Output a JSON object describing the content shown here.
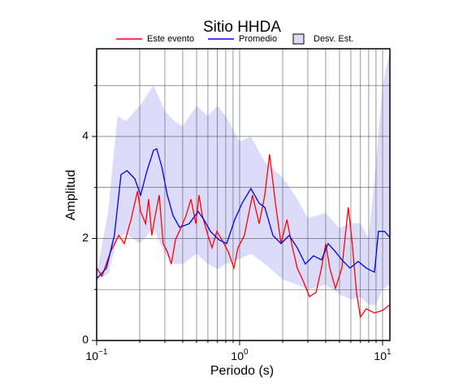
{
  "chart_data": {
    "type": "line",
    "title": "Sitio HHDA",
    "xlabel": "Periodo (s)",
    "ylabel": "Amplitud",
    "xscale": "log",
    "xlim": [
      0.1,
      11.25
    ],
    "ylim": [
      0,
      5.72
    ],
    "xticks": [
      {
        "value": 0.1,
        "label": "10",
        "exponent": "−1"
      },
      {
        "value": 1,
        "label": "10",
        "exponent": "0"
      },
      {
        "value": 10,
        "label": "10",
        "exponent": "1"
      }
    ],
    "xminor": [
      0.2,
      0.3,
      0.4,
      0.5,
      0.6,
      0.7,
      0.8,
      0.9,
      2,
      3,
      4,
      5,
      6,
      7,
      8,
      9
    ],
    "yticks": [
      0,
      2,
      4
    ],
    "yminor": [
      1,
      3,
      5
    ],
    "grid": true,
    "series": [
      {
        "name": "Este evento",
        "color": "#ff0000",
        "x": [
          0.1,
          0.109,
          0.125,
          0.143,
          0.156,
          0.174,
          0.193,
          0.203,
          0.22,
          0.231,
          0.243,
          0.257,
          0.274,
          0.292,
          0.312,
          0.333,
          0.356,
          0.39,
          0.422,
          0.457,
          0.494,
          0.52,
          0.548,
          0.6,
          0.641,
          0.693,
          0.75,
          0.833,
          0.912,
          0.974,
          1.08,
          1.23,
          1.37,
          1.5,
          1.62,
          1.78,
          1.95,
          2.14,
          2.31,
          2.53,
          2.77,
          3.08,
          3.42,
          3.74,
          4.0,
          4.27,
          4.68,
          5.19,
          5.76,
          6.14,
          6.57,
          7.0,
          7.69,
          8.77,
          9.99,
          11.25
        ],
        "values": [
          1.42,
          1.26,
          1.74,
          2.06,
          1.9,
          2.37,
          2.93,
          2.53,
          2.29,
          2.77,
          2.06,
          2.45,
          2.85,
          1.9,
          1.74,
          1.5,
          1.98,
          2.22,
          2.45,
          2.77,
          2.29,
          2.85,
          2.45,
          2.06,
          1.82,
          2.14,
          1.98,
          1.74,
          1.42,
          1.82,
          2.06,
          2.85,
          2.29,
          2.85,
          3.65,
          2.69,
          1.9,
          2.37,
          1.9,
          1.42,
          1.18,
          0.86,
          0.94,
          1.42,
          1.9,
          1.42,
          1.02,
          1.42,
          2.61,
          1.9,
          0.94,
          0.46,
          0.62,
          0.54,
          0.59,
          0.7
        ]
      },
      {
        "name": "Promedio",
        "color": "#0000ee",
        "x": [
          0.1,
          0.117,
          0.133,
          0.148,
          0.163,
          0.185,
          0.203,
          0.225,
          0.25,
          0.263,
          0.285,
          0.312,
          0.342,
          0.38,
          0.444,
          0.513,
          0.562,
          0.625,
          0.712,
          0.811,
          0.924,
          1.04,
          1.2,
          1.37,
          1.5,
          1.71,
          1.95,
          2.22,
          2.53,
          2.88,
          3.29,
          3.74,
          4.16,
          4.68,
          5.19,
          5.92,
          6.75,
          7.69,
          8.77,
          9.36,
          10.3,
          11.25
        ],
        "values": [
          1.21,
          1.42,
          2.06,
          3.25,
          3.33,
          3.17,
          2.85,
          3.33,
          3.73,
          3.76,
          3.41,
          2.85,
          2.45,
          2.22,
          2.29,
          2.53,
          2.37,
          2.14,
          1.98,
          1.9,
          2.37,
          2.69,
          2.98,
          2.69,
          2.61,
          2.06,
          1.9,
          2.06,
          1.82,
          1.5,
          1.66,
          1.58,
          1.9,
          1.74,
          1.58,
          1.42,
          1.55,
          1.42,
          1.34,
          2.14,
          2.14,
          2.02
        ]
      }
    ],
    "band": {
      "name": "Desv. Est.",
      "color": "#dcdcfa",
      "x": [
        0.1,
        0.12,
        0.14,
        0.16,
        0.2,
        0.25,
        0.3,
        0.35,
        0.4,
        0.5,
        0.6,
        0.7,
        0.8,
        1,
        1.2,
        1.5,
        2,
        2.5,
        3,
        4,
        5,
        6,
        7,
        8,
        9,
        10,
        11.25
      ],
      "lower": [
        1.2,
        1.3,
        2.0,
        2.1,
        1.9,
        2.2,
        1.7,
        1.5,
        1.5,
        1.7,
        1.5,
        1.4,
        1.5,
        1.6,
        1.7,
        1.5,
        1.2,
        1.1,
        1.0,
        1.1,
        0.9,
        0.8,
        0.85,
        0.7,
        0.7,
        1.0,
        1.1
      ],
      "upper": [
        1.3,
        2.5,
        4.4,
        4.3,
        4.6,
        5.0,
        4.5,
        4.3,
        4.2,
        4.6,
        4.4,
        4.6,
        4.4,
        3.9,
        4.0,
        3.5,
        3.2,
        2.8,
        2.4,
        2.5,
        2.2,
        2.3,
        2.3,
        2.0,
        3.5,
        5.0,
        5.7
      ]
    }
  }
}
